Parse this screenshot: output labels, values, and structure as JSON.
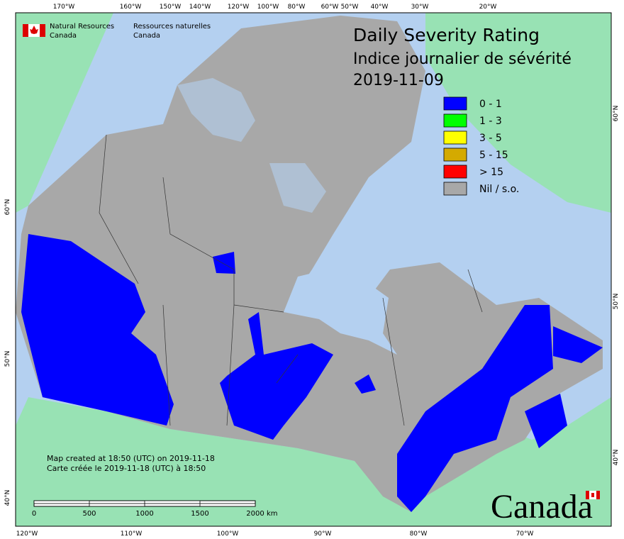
{
  "header": {
    "agency_en": [
      "Natural Resources",
      "Canada"
    ],
    "agency_fr": [
      "Ressources naturelles",
      "Canada"
    ]
  },
  "title": {
    "line1": "Daily Severity Rating",
    "line2": "Indice journalier de sévérité",
    "date": "2019-11-09"
  },
  "legend": [
    {
      "label": "0 - 1",
      "color": "#0000ff"
    },
    {
      "label": "1 - 3",
      "color": "#00ff00"
    },
    {
      "label": "3 - 5",
      "color": "#ffff00"
    },
    {
      "label": "5 - 15",
      "color": "#d4aa00"
    },
    {
      "label": "> 15",
      "color": "#ff0000"
    },
    {
      "label": "Nil / s.o.",
      "color": "#a8a8a8"
    }
  ],
  "axes": {
    "top": [
      "170°W",
      "160°W",
      "150°W",
      "140°W",
      "120°W",
      "100°W",
      "80°W",
      "60°W",
      "50°W",
      "40°W",
      "30°W",
      "20°W"
    ],
    "bottom": [
      "120°W",
      "110°W",
      "100°W",
      "90°W",
      "80°W",
      "70°W"
    ],
    "left": [
      "60°N",
      "50°N",
      "40°N"
    ],
    "right": [
      "60°N",
      "50°N",
      "40°N"
    ]
  },
  "notes": [
    "Map created at 18:50 (UTC) on 2019-11-18",
    "Carte créée le 2019-11-18 (UTC) à 18:50"
  ],
  "scale_bar": {
    "labels": [
      "0",
      "500",
      "1000",
      "1500",
      "2000"
    ],
    "unit": "km"
  },
  "wordmark": "Canada"
}
